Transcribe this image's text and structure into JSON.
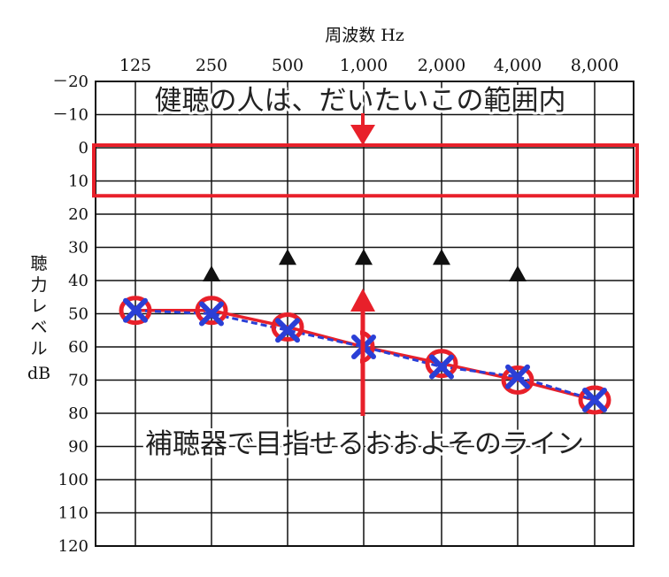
{
  "chart_data": {
    "type": "line",
    "title": "",
    "xlabel": "周波数 Hz",
    "ylabel_chars": [
      "聴",
      "力",
      "レ",
      "ベ",
      "ル"
    ],
    "ylabel_unit": "dB",
    "x_categories": [
      "125",
      "250",
      "500",
      "1,000",
      "2,000",
      "4,000",
      "8,000"
    ],
    "y_ticks": [
      "－20",
      "－10",
      "0",
      "10",
      "20",
      "30",
      "40",
      "50",
      "60",
      "70",
      "80",
      "90",
      "100",
      "110",
      "120"
    ],
    "ylim": [
      -20,
      120
    ],
    "y_inverted": true,
    "grid": true,
    "series": [
      {
        "values": [
          49,
          49,
          54,
          60,
          65,
          70,
          76
        ],
        "color": "#e8202a"
      },
      {
        "values": [
          49,
          50,
          55,
          60,
          66,
          69,
          76
        ],
        "color": "#2a3fd6"
      }
    ],
    "bone_markers": [
      {
        "x": "250",
        "y": 40
      },
      {
        "x": "500",
        "y": 35
      },
      {
        "x": "1,000",
        "y": 35
      },
      {
        "x": "2,000",
        "y": 35
      },
      {
        "x": "4,000",
        "y": 40
      }
    ],
    "highlight_range": [
      0,
      15
    ],
    "annotations": {
      "top_text": "健聴の人は、だいたいこの範囲内",
      "bottom_text": "補聴器で目指せるおおよそのライン"
    }
  },
  "colors": {
    "highlight": "#e8202a",
    "arrow": "#e8202a",
    "marker": "#111111"
  }
}
